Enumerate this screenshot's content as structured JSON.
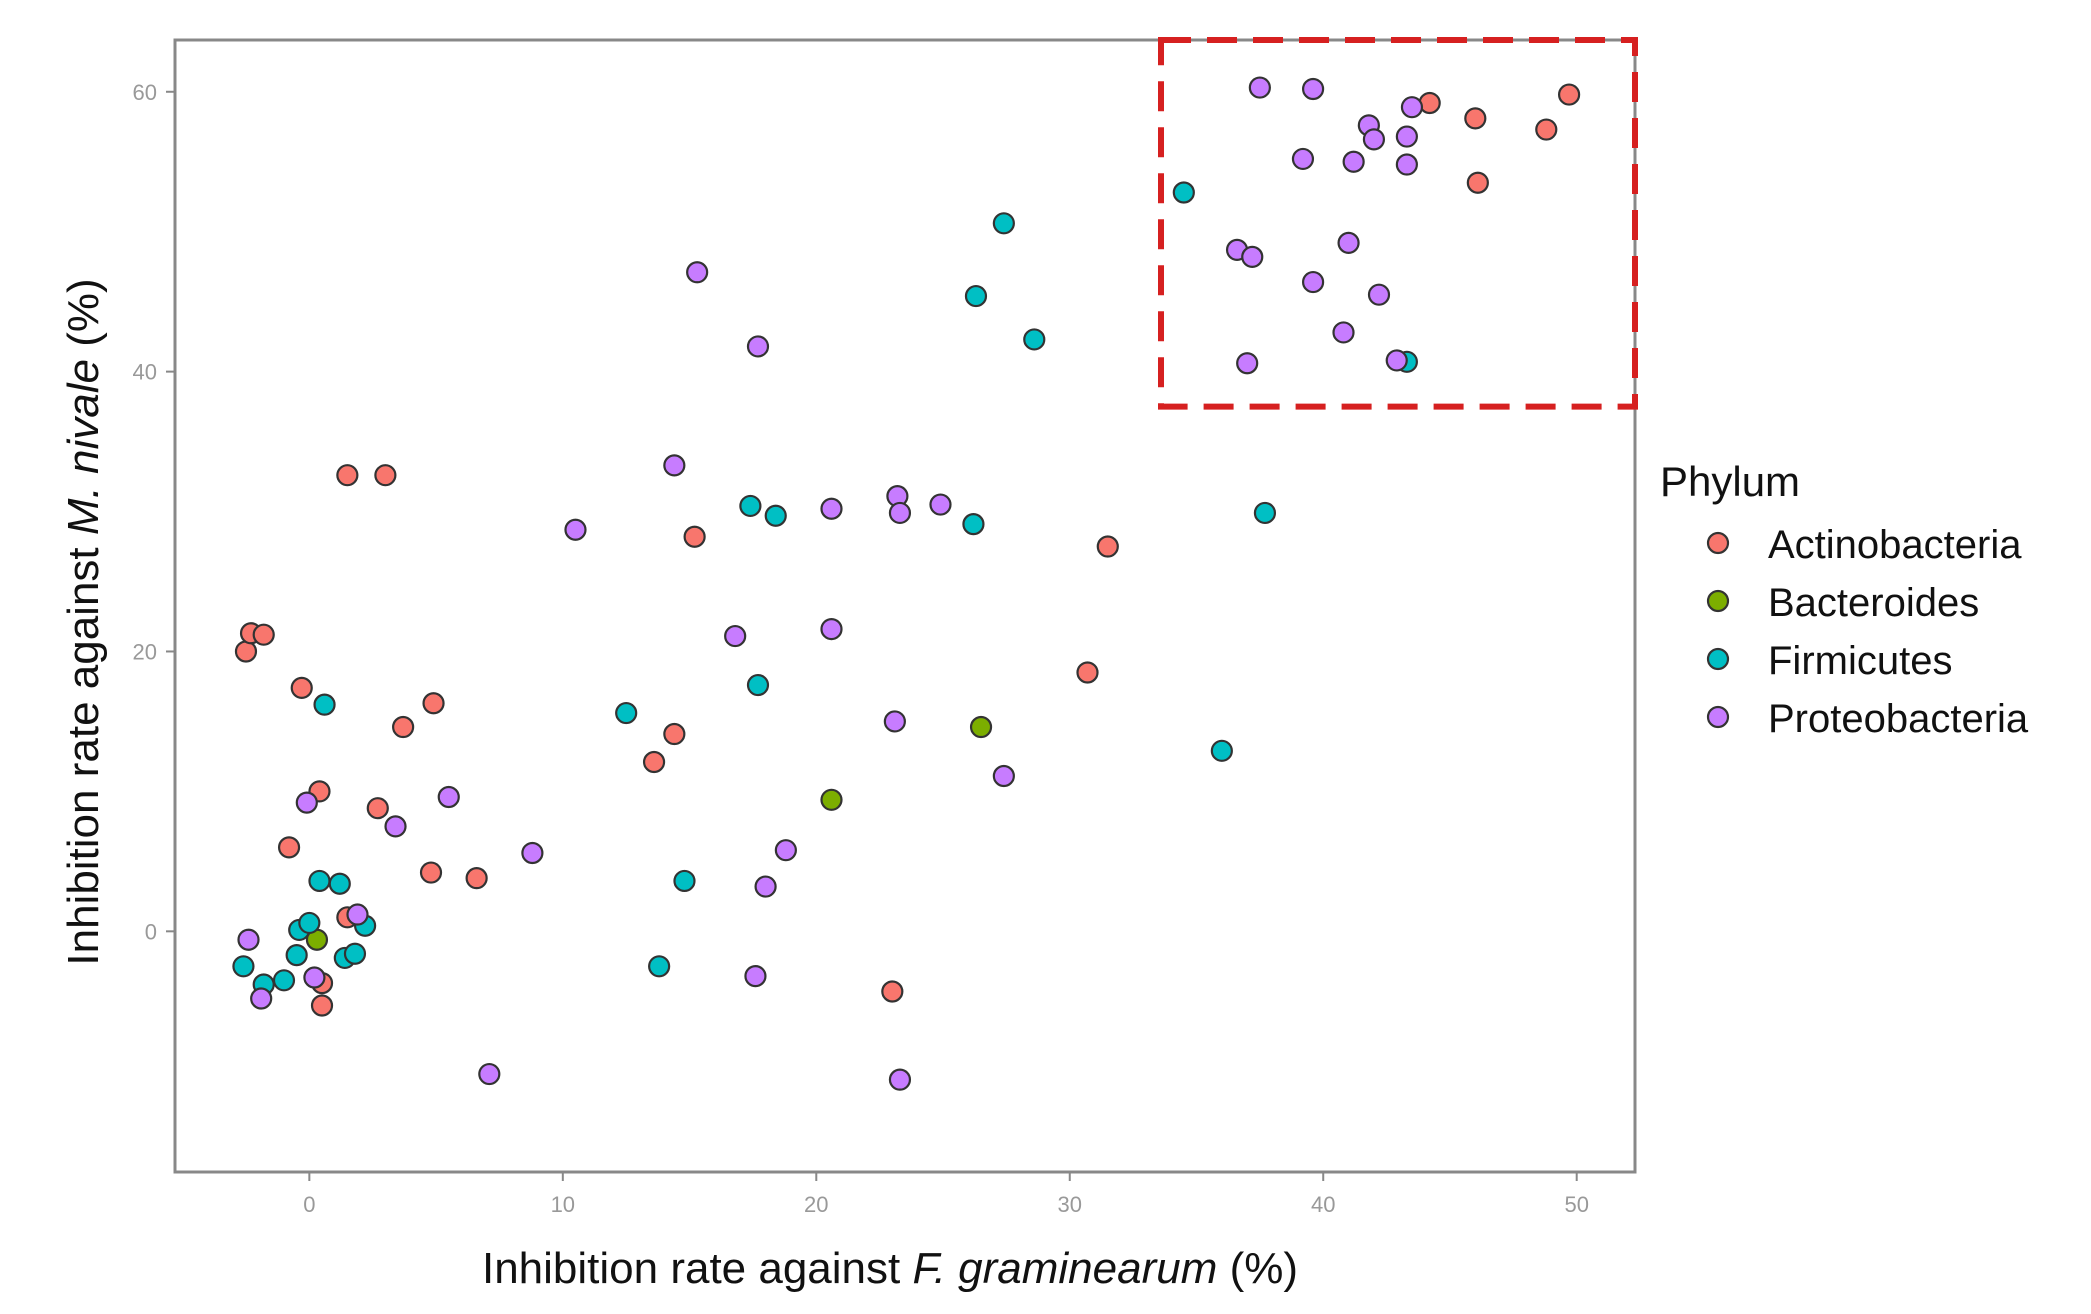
{
  "chart_data": {
    "type": "scatter",
    "title": "",
    "xlabel": {
      "prefix": "Inhibition rate against ",
      "italic": "F. graminearum",
      "suffix": " (%)"
    },
    "ylabel": {
      "prefix": "Inhibition rate against ",
      "italic": "M. nivale",
      "suffix": " (%)"
    },
    "xlim": [
      -5.3,
      52.3
    ],
    "ylim": [
      -17.2,
      63.7
    ],
    "xticks": [
      0,
      10,
      20,
      30,
      40,
      50
    ],
    "yticks": [
      0,
      20,
      40,
      60
    ],
    "grid": false,
    "legend": {
      "title": "Phylum",
      "position": "right"
    },
    "highlight_box": {
      "x": [
        33.6,
        52.3
      ],
      "y": [
        37.5,
        63.7
      ],
      "color": "#d62020",
      "style": "dashed"
    },
    "series": [
      {
        "name": "Actinobacteria",
        "color": "#f8766d",
        "points": [
          [
            -2.5,
            20.0
          ],
          [
            -2.3,
            21.3
          ],
          [
            -1.8,
            21.2
          ],
          [
            -0.3,
            17.4
          ],
          [
            1.5,
            32.6
          ],
          [
            3.0,
            32.6
          ],
          [
            3.7,
            14.6
          ],
          [
            4.9,
            16.3
          ],
          [
            2.7,
            8.8
          ],
          [
            0.4,
            10.0
          ],
          [
            -0.8,
            6.0
          ],
          [
            4.8,
            4.2
          ],
          [
            6.6,
            3.8
          ],
          [
            1.5,
            1.0
          ],
          [
            0.5,
            -3.7
          ],
          [
            0.5,
            -5.3
          ],
          [
            15.2,
            28.2
          ],
          [
            14.4,
            14.1
          ],
          [
            13.6,
            12.1
          ],
          [
            23.0,
            -4.3
          ],
          [
            30.7,
            18.5
          ],
          [
            31.5,
            27.5
          ],
          [
            44.2,
            59.2
          ],
          [
            46.0,
            58.1
          ],
          [
            46.1,
            53.5
          ],
          [
            48.8,
            57.3
          ],
          [
            49.7,
            59.8
          ]
        ]
      },
      {
        "name": "Bacteroides",
        "color": "#7cae00",
        "points": [
          [
            0.3,
            -0.6
          ],
          [
            20.6,
            9.4
          ],
          [
            26.5,
            14.6
          ]
        ]
      },
      {
        "name": "Firmicutes",
        "color": "#00bfc4",
        "points": [
          [
            -2.6,
            -2.5
          ],
          [
            -1.8,
            -3.8
          ],
          [
            -1.0,
            -3.5
          ],
          [
            -0.5,
            -1.7
          ],
          [
            -0.4,
            0.1
          ],
          [
            0.0,
            0.6
          ],
          [
            0.4,
            3.6
          ],
          [
            0.6,
            16.2
          ],
          [
            1.2,
            3.4
          ],
          [
            1.4,
            -1.9
          ],
          [
            1.8,
            -1.6
          ],
          [
            2.2,
            0.4
          ],
          [
            12.5,
            15.6
          ],
          [
            13.8,
            -2.5
          ],
          [
            14.8,
            3.6
          ],
          [
            17.4,
            30.4
          ],
          [
            17.7,
            17.6
          ],
          [
            18.4,
            29.7
          ],
          [
            26.2,
            29.1
          ],
          [
            26.3,
            45.4
          ],
          [
            27.4,
            50.6
          ],
          [
            28.6,
            42.3
          ],
          [
            34.5,
            52.8
          ],
          [
            36.0,
            12.9
          ],
          [
            37.7,
            29.9
          ],
          [
            43.3,
            40.7
          ]
        ]
      },
      {
        "name": "Proteobacteria",
        "color": "#c77cff",
        "points": [
          [
            -2.4,
            -0.6
          ],
          [
            -1.9,
            -4.8
          ],
          [
            -0.1,
            9.2
          ],
          [
            0.2,
            -3.3
          ],
          [
            1.9,
            1.2
          ],
          [
            3.4,
            7.5
          ],
          [
            5.5,
            9.6
          ],
          [
            7.1,
            -10.2
          ],
          [
            8.8,
            5.6
          ],
          [
            10.5,
            28.7
          ],
          [
            14.4,
            33.3
          ],
          [
            15.3,
            47.1
          ],
          [
            16.8,
            21.1
          ],
          [
            17.6,
            -3.2
          ],
          [
            17.7,
            41.8
          ],
          [
            18.0,
            3.2
          ],
          [
            18.8,
            5.8
          ],
          [
            20.6,
            30.2
          ],
          [
            20.6,
            21.6
          ],
          [
            23.1,
            15.0
          ],
          [
            23.2,
            31.1
          ],
          [
            23.3,
            29.9
          ],
          [
            23.3,
            -10.6
          ],
          [
            24.9,
            30.5
          ],
          [
            27.4,
            11.1
          ],
          [
            36.6,
            48.7
          ],
          [
            37.0,
            40.6
          ],
          [
            37.2,
            48.2
          ],
          [
            37.5,
            60.3
          ],
          [
            39.2,
            55.2
          ],
          [
            39.6,
            46.4
          ],
          [
            39.6,
            60.2
          ],
          [
            40.8,
            42.8
          ],
          [
            41.0,
            49.2
          ],
          [
            41.2,
            55.0
          ],
          [
            41.8,
            57.6
          ],
          [
            42.0,
            56.6
          ],
          [
            42.2,
            45.5
          ],
          [
            42.9,
            40.8
          ],
          [
            43.3,
            56.8
          ],
          [
            43.3,
            54.8
          ],
          [
            43.5,
            58.9
          ]
        ]
      }
    ]
  }
}
